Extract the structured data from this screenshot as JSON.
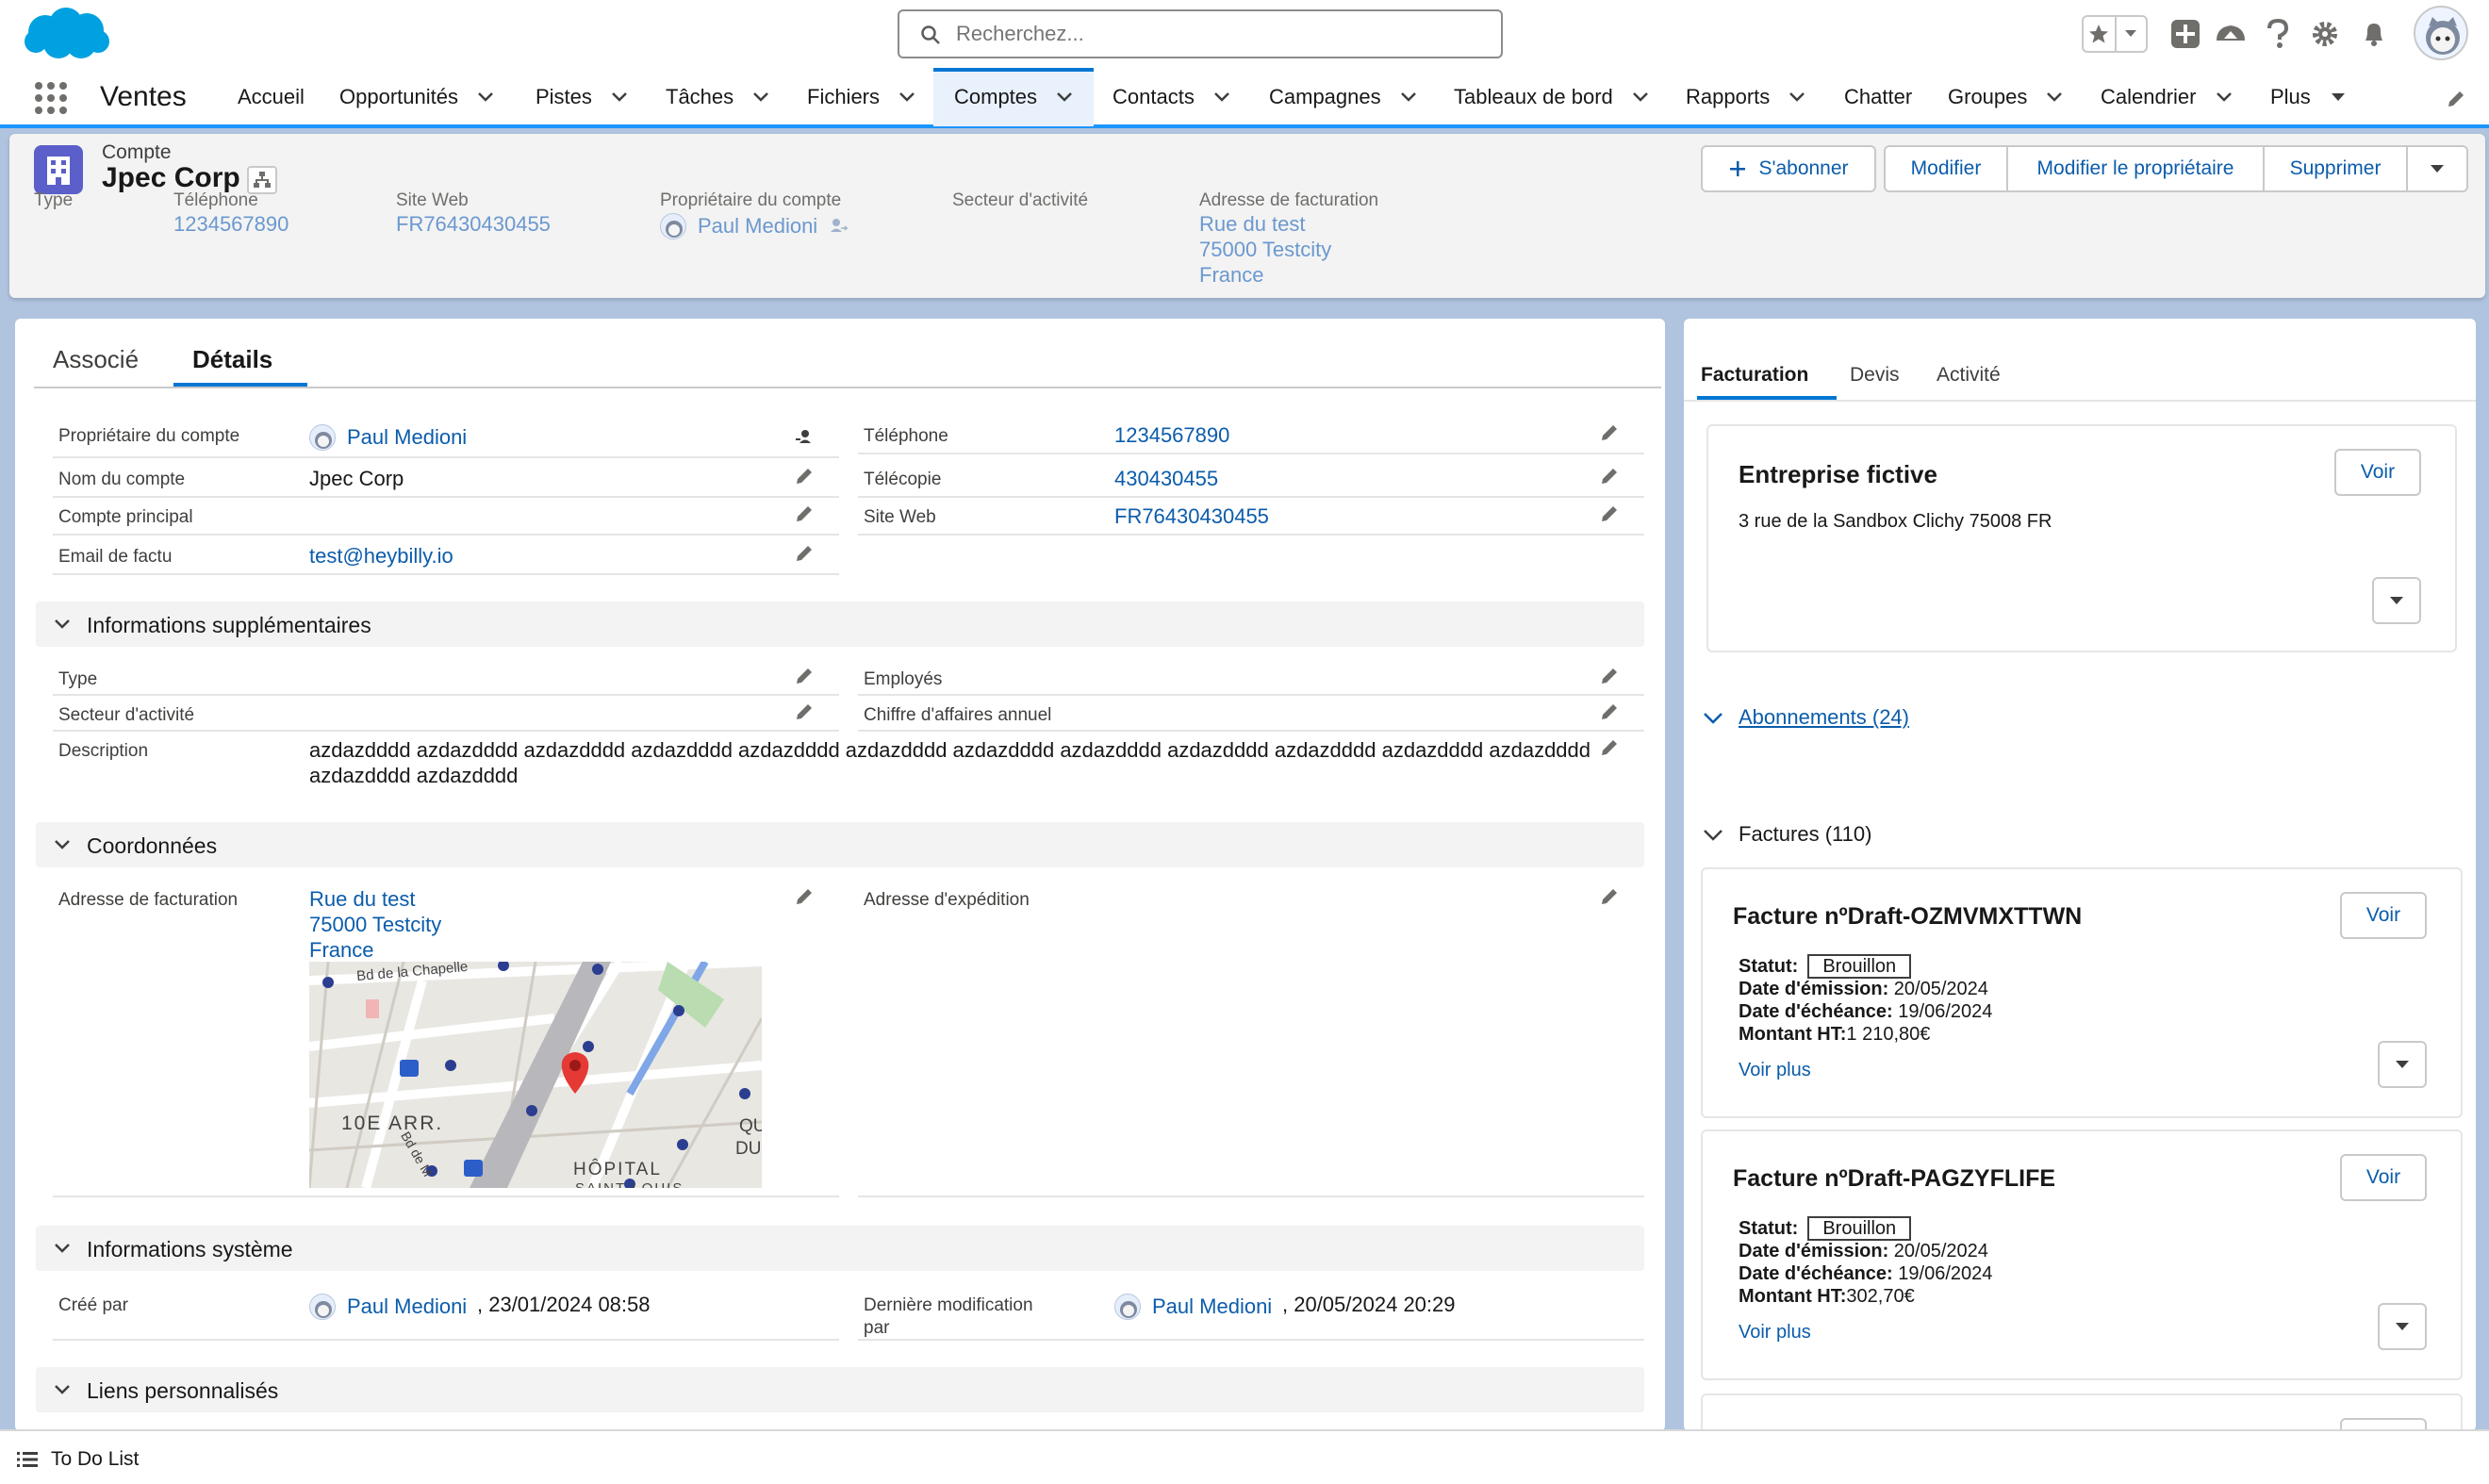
{
  "header": {
    "search_placeholder": "Recherchez..."
  },
  "nav": {
    "app_name": "Ventes",
    "items": [
      {
        "label": "Accueil",
        "has_menu": false
      },
      {
        "label": "Opportunités",
        "has_menu": true
      },
      {
        "label": "Pistes",
        "has_menu": true
      },
      {
        "label": "Tâches",
        "has_menu": true
      },
      {
        "label": "Fichiers",
        "has_menu": true
      },
      {
        "label": "Comptes",
        "has_menu": true,
        "active": true
      },
      {
        "label": "Contacts",
        "has_menu": true
      },
      {
        "label": "Campagnes",
        "has_menu": true
      },
      {
        "label": "Tableaux de bord",
        "has_menu": true
      },
      {
        "label": "Rapports",
        "has_menu": true
      },
      {
        "label": "Chatter",
        "has_menu": false
      },
      {
        "label": "Groupes",
        "has_menu": true
      },
      {
        "label": "Calendrier",
        "has_menu": true
      },
      {
        "label": "Plus",
        "has_menu": true
      }
    ]
  },
  "highlights": {
    "record_type": "Compte",
    "record_name": "Jpec Corp",
    "fields": {
      "type_label": "Type",
      "phone_label": "Téléphone",
      "phone_value": "1234567890",
      "website_label": "Site Web",
      "website_value": "FR76430430455",
      "owner_label": "Propriétaire du compte",
      "owner_value": "Paul Medioni",
      "industry_label": "Secteur d'activité",
      "billing_label": "Adresse de facturation",
      "billing_line1": "Rue du test",
      "billing_line2": "75000 Testcity",
      "billing_line3": "France"
    },
    "actions": {
      "subscribe": "S'abonner",
      "edit": "Modifier",
      "change_owner": "Modifier le propriétaire",
      "delete": "Supprimer"
    }
  },
  "main": {
    "tabs": {
      "related": "Associé",
      "details": "Détails"
    },
    "details": {
      "owner_label": "Propriétaire du compte",
      "owner_value": "Paul Medioni",
      "name_label": "Nom du compte",
      "name_value": "Jpec Corp",
      "parent_label": "Compte principal",
      "email_label": "Email de factu",
      "email_value": "test@heybilly.io",
      "phone_label": "Téléphone",
      "phone_value": "1234567890",
      "fax_label": "Télécopie",
      "fax_value": "430430455",
      "website_label": "Site Web",
      "website_value": "FR76430430455"
    },
    "additional": {
      "title": "Informations supplémentaires",
      "type_label": "Type",
      "industry_label": "Secteur d'activité",
      "description_label": "Description",
      "description_value": "azdazdddd azdazdddd azdazdddd azdazdddd azdazdddd azdazdddd azdazdddd azdazdddd azdazdddd azdazdddd azdazdddd azdazdddd azdazdddd azdazdddd",
      "employees_label": "Employés",
      "revenue_label": "Chiffre d'affaires annuel"
    },
    "address": {
      "title": "Coordonnées",
      "billing_label": "Adresse de facturation",
      "billing_line1": "Rue du test",
      "billing_line2": "75000 Testcity",
      "billing_line3": "France",
      "shipping_label": "Adresse d'expédition",
      "map": {
        "street1": "Bd de la Chapelle",
        "district": "10E ARR.",
        "street2": "Bd de M",
        "poi1": "HÔPITAL",
        "poi2": "SAINT-LOUIS",
        "q1": "QU",
        "q2": "DU"
      }
    },
    "system": {
      "title": "Informations système",
      "created_label": "Créé par",
      "created_user": "Paul Medioni",
      "created_date": ", 23/01/2024 08:58",
      "modified_label_l1": "Dernière modification",
      "modified_label_l2": "par",
      "modified_user": "Paul Medioni",
      "modified_date": ", 20/05/2024 20:29"
    },
    "custom_links": {
      "title": "Liens personnalisés"
    }
  },
  "right": {
    "tabs": {
      "billing": "Facturation",
      "quotes": "Devis",
      "activity": "Activité"
    },
    "company": {
      "title": "Entreprise fictive",
      "address": "3 rue de la Sandbox Clichy 75008 FR",
      "view": "Voir"
    },
    "subscriptions_link": "Abonnements (24)",
    "invoices_title": "Factures (110)",
    "invoices": [
      {
        "title": "Facture nºDraft-OZMVMXTTWN",
        "status_label": "Statut:",
        "status": "Brouillon",
        "issue_label": "Date d'émission:",
        "issue": " 20/05/2024",
        "due_label": "Date d'échéance:",
        "due": " 19/06/2024",
        "amount_label": "Montant HT:",
        "amount": "1 210,80€",
        "more": "Voir plus",
        "view": "Voir"
      },
      {
        "title": "Facture nºDraft-PAGZYFLIFE",
        "status_label": "Statut:",
        "status": "Brouillon",
        "issue_label": "Date d'émission:",
        "issue": " 20/05/2024",
        "due_label": "Date d'échéance:",
        "due": " 19/06/2024",
        "amount_label": "Montant HT:",
        "amount": "302,70€",
        "more": "Voir plus",
        "view": "Voir"
      }
    ]
  },
  "footer": {
    "todo": "To Do List"
  },
  "colors": {
    "brand": "#0176d3",
    "link": "#0b5cab",
    "background": "#b0c4df"
  }
}
